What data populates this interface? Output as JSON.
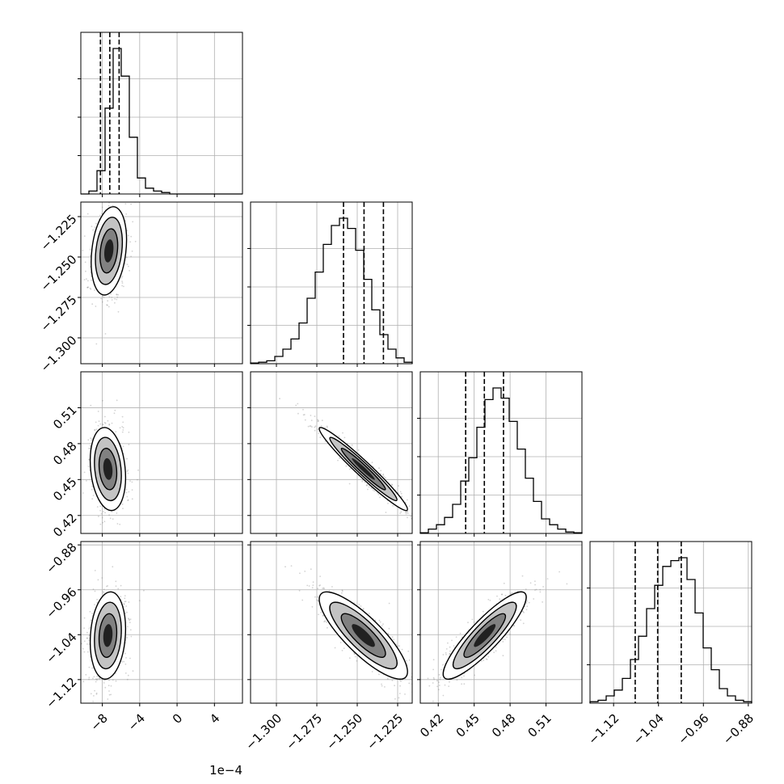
{
  "colors": {
    "line": "#000000",
    "grid": "#b0b0b0",
    "scatter": "#808080",
    "density_light": "#bdbdbd",
    "density_mid": "#7a7a7a",
    "density_dark": "#111111",
    "background": "#ffffff"
  },
  "chart_data": {
    "type": "corner",
    "grid": true,
    "title": "",
    "parameters": [
      {
        "range": [
          -10.3,
          7.0
        ],
        "ticks": [
          -8,
          -4,
          0,
          4
        ],
        "tick_labels": [
          "−8",
          "−4",
          "0",
          "4"
        ],
        "offset_label": "1e−4",
        "quantiles": [
          -8.2,
          -7.2,
          -6.2
        ],
        "hist_bins": [
          0.0,
          0.02,
          0.16,
          0.59,
          1.0,
          0.81,
          0.39,
          0.11,
          0.04,
          0.02,
          0.01,
          0.0,
          0.0,
          0.0,
          0.0,
          0.0,
          0.0,
          0.0,
          0.0,
          0.0
        ]
      },
      {
        "range": [
          -1.316,
          -1.216
        ],
        "ticks": [
          -1.3,
          -1.275,
          -1.25,
          -1.225
        ],
        "tick_labels": [
          "−1.300",
          "−1.275",
          "−1.250",
          "−1.225"
        ],
        "quantiles": [
          -1.2585,
          -1.2458,
          -1.2338
        ],
        "hist_bins": [
          0.005,
          0.01,
          0.02,
          0.05,
          0.1,
          0.17,
          0.28,
          0.45,
          0.63,
          0.82,
          0.95,
          1.0,
          0.93,
          0.78,
          0.58,
          0.37,
          0.2,
          0.1,
          0.04,
          0.01
        ]
      },
      {
        "range": [
          0.405,
          0.54
        ],
        "ticks": [
          0.42,
          0.45,
          0.48,
          0.51
        ],
        "tick_labels": [
          "0.42",
          "0.45",
          "0.48",
          "0.51"
        ],
        "quantiles": [
          0.4429,
          0.4585,
          0.4745
        ],
        "hist_bins": [
          0.005,
          0.03,
          0.06,
          0.11,
          0.2,
          0.36,
          0.52,
          0.73,
          0.92,
          1.0,
          0.93,
          0.77,
          0.58,
          0.38,
          0.22,
          0.1,
          0.06,
          0.03,
          0.01,
          0.005
        ]
      },
      {
        "range": [
          -1.162,
          -0.874
        ],
        "ticks": [
          -1.12,
          -1.04,
          -0.96,
          -0.88
        ],
        "tick_labels": [
          "−1.12",
          "−1.04",
          "−0.96",
          "−0.88"
        ],
        "quantiles": [
          -1.0815,
          -1.0415,
          -0.9995
        ],
        "hist_bins": [
          0.01,
          0.02,
          0.05,
          0.09,
          0.17,
          0.3,
          0.46,
          0.65,
          0.81,
          0.94,
          0.98,
          1.0,
          0.85,
          0.62,
          0.38,
          0.23,
          0.1,
          0.05,
          0.02,
          0.01
        ]
      }
    ],
    "pairs": [
      {
        "row": 1,
        "col": 0,
        "mean": [
          -7.3,
          -1.2462
        ],
        "sd": [
          0.9,
          0.013
        ],
        "rho": 0.25
      },
      {
        "row": 2,
        "col": 0,
        "mean": [
          -7.4,
          0.4588
        ],
        "sd": [
          0.9,
          0.0165
        ],
        "rho": -0.2
      },
      {
        "row": 2,
        "col": 1,
        "mean": [
          -1.2462,
          0.4588
        ],
        "sd": [
          0.013,
          0.0165
        ],
        "rho": -0.97
      },
      {
        "row": 3,
        "col": 0,
        "mean": [
          -7.4,
          -1.0415
        ],
        "sd": [
          0.9,
          0.037
        ],
        "rho": 0.15
      },
      {
        "row": 3,
        "col": 1,
        "mean": [
          -1.2462,
          -1.0415
        ],
        "sd": [
          0.013,
          0.037
        ],
        "rho": -0.83
      },
      {
        "row": 3,
        "col": 2,
        "mean": [
          0.4588,
          -1.0415
        ],
        "sd": [
          0.0165,
          0.037
        ],
        "rho": 0.88
      }
    ]
  }
}
